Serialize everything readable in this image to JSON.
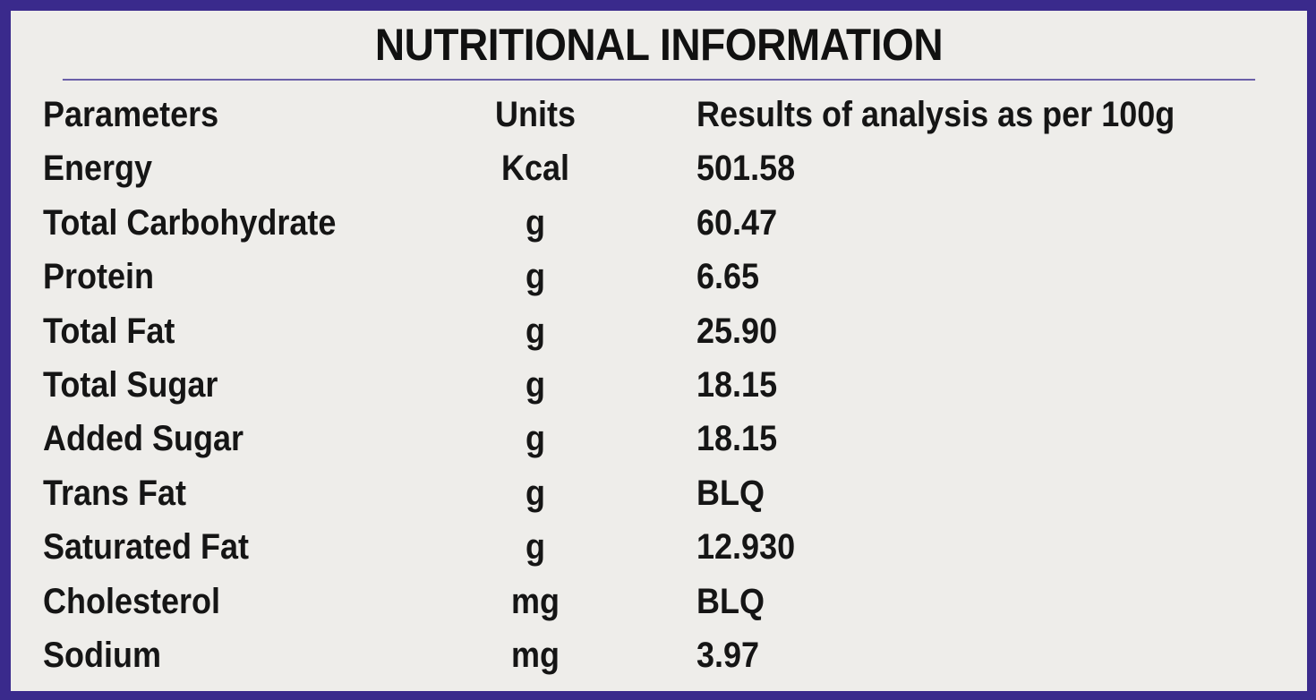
{
  "title": "NUTRITIONAL INFORMATION",
  "header": {
    "parameter": "Parameters",
    "unit": "Units",
    "result": "Results of analysis as per 100g"
  },
  "rows": [
    {
      "parameter": "Energy",
      "unit": "Kcal",
      "result": "501.58"
    },
    {
      "parameter": "Total Carbohydrate",
      "unit": "g",
      "result": "60.47"
    },
    {
      "parameter": "Protein",
      "unit": "g",
      "result": "6.65"
    },
    {
      "parameter": "Total Fat",
      "unit": "g",
      "result": "25.90"
    },
    {
      "parameter": "Total Sugar",
      "unit": "g",
      "result": "18.15"
    },
    {
      "parameter": "Added Sugar",
      "unit": "g",
      "result": "18.15"
    },
    {
      "parameter": "Trans Fat",
      "unit": "g",
      "result": "BLQ"
    },
    {
      "parameter": "Saturated Fat",
      "unit": "g",
      "result": "12.930"
    },
    {
      "parameter": "Cholesterol",
      "unit": "mg",
      "result": "BLQ"
    },
    {
      "parameter": "Sodium",
      "unit": "mg",
      "result": "3.97"
    }
  ],
  "colors": {
    "border": "#3a2a8c",
    "panel": "#eeedea",
    "text": "#151515"
  }
}
